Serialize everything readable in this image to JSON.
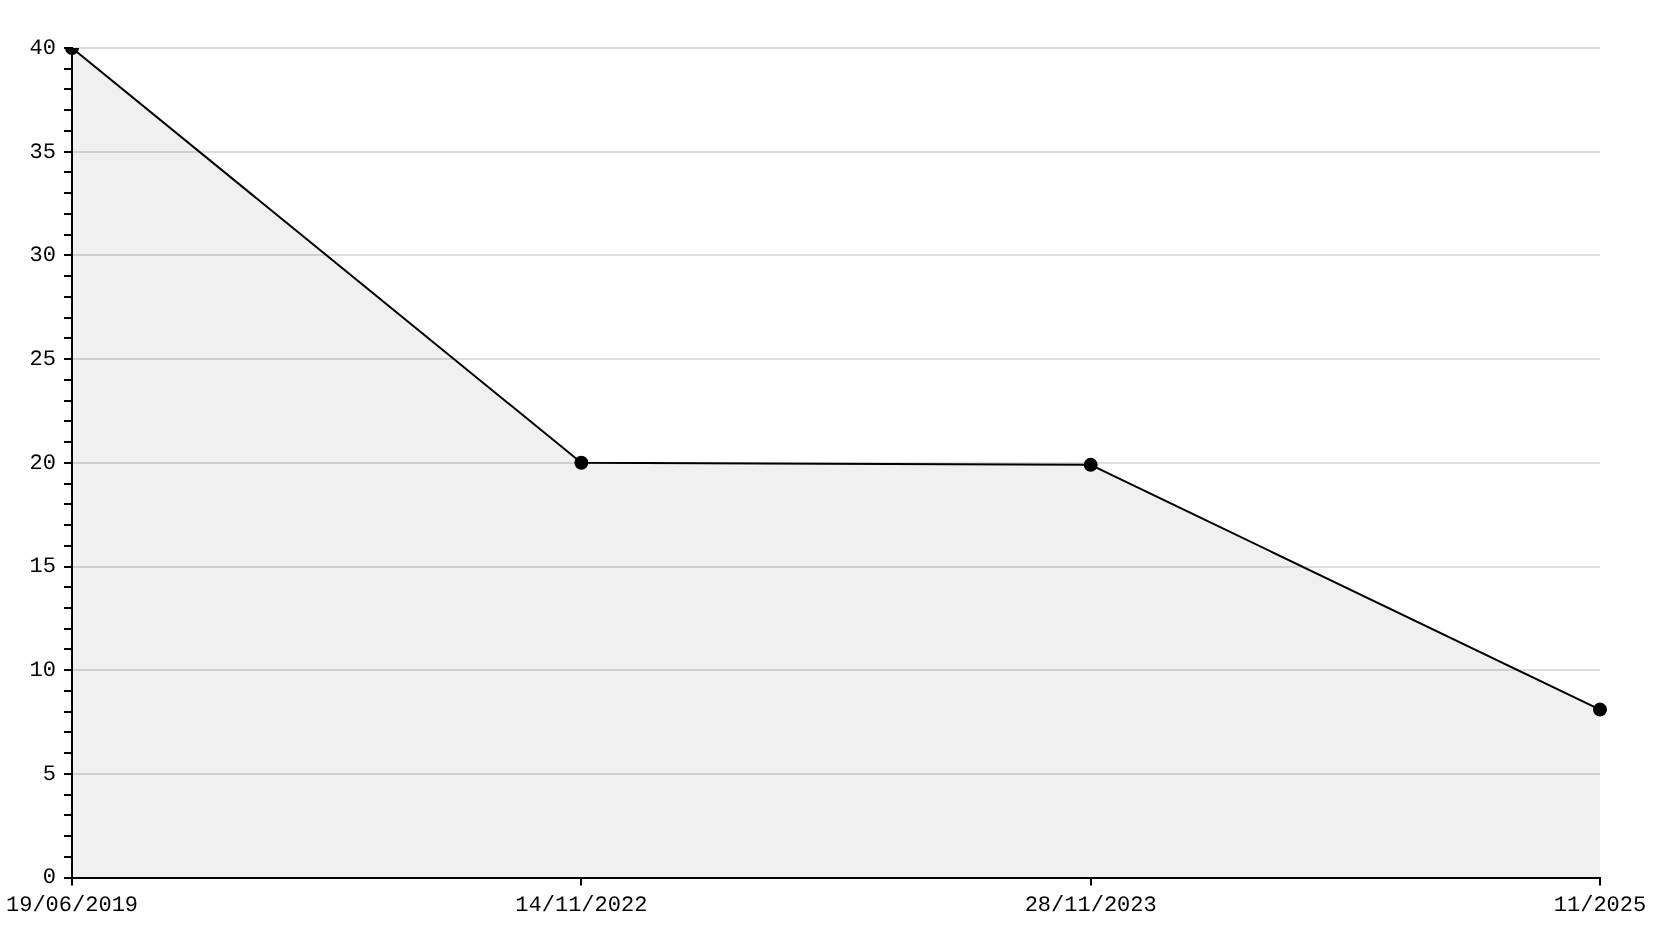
{
  "chart_data": {
    "type": "area",
    "categories": [
      "19/06/2019",
      "14/11/2022",
      "28/11/2023",
      "11/2025"
    ],
    "series": [
      {
        "color": "#000000",
        "values": [
          40,
          20,
          19.9,
          8.1
        ]
      }
    ],
    "ylim": [
      0,
      40
    ],
    "yticks": [
      0,
      {
        "value": 1,
        "label": null
      },
      {
        "value": 2,
        "label": null
      },
      {
        "value": 3,
        "label": null
      },
      {
        "value": 4,
        "label": null
      },
      5,
      {
        "value": 6,
        "label": null
      },
      {
        "value": 7,
        "label": null
      },
      {
        "value": 8,
        "label": null
      },
      {
        "value": 9,
        "label": null
      },
      10,
      {
        "value": 11,
        "label": null
      },
      {
        "value": 12,
        "label": null
      },
      {
        "value": 13,
        "label": null
      },
      {
        "value": 14,
        "label": null
      },
      15,
      {
        "value": 16,
        "label": null
      },
      {
        "value": 17,
        "label": null
      },
      {
        "value": 18,
        "label": null
      },
      {
        "value": 19,
        "label": null
      },
      20,
      {
        "value": 21,
        "label": null
      },
      {
        "value": 22,
        "label": null
      },
      {
        "value": 23,
        "label": null
      },
      {
        "value": 24,
        "label": null
      },
      25,
      {
        "value": 26,
        "label": null
      },
      {
        "value": 27,
        "label": null
      },
      {
        "value": 28,
        "label": null
      },
      {
        "value": 29,
        "label": null
      },
      30,
      {
        "value": 31,
        "label": null
      },
      {
        "value": 32,
        "label": null
      },
      {
        "value": 33,
        "label": null
      },
      {
        "value": 34,
        "label": null
      },
      35,
      {
        "value": 36,
        "label": null
      },
      {
        "value": 37,
        "label": null
      },
      {
        "value": 38,
        "label": null
      },
      {
        "value": 39,
        "label": null
      },
      40
    ],
    "grid": "y",
    "marker": "circle",
    "line_style": "solid"
  }
}
